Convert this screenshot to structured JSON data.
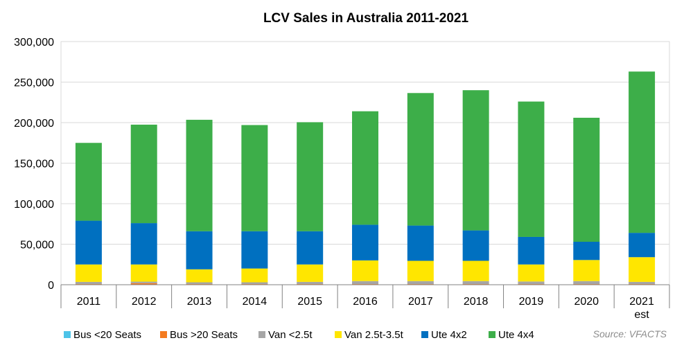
{
  "chart_data": {
    "type": "bar",
    "stacked": true,
    "title": "LCV Sales in Australia 2011-2021",
    "source": "Source: VFACTS",
    "categories": [
      [
        "2011"
      ],
      [
        "2012"
      ],
      [
        "2013"
      ],
      [
        "2014"
      ],
      [
        "2015"
      ],
      [
        "2016"
      ],
      [
        "2017"
      ],
      [
        "2018"
      ],
      [
        "2019"
      ],
      [
        "2020"
      ],
      [
        "2021",
        "est"
      ]
    ],
    "ylim": [
      0,
      300000
    ],
    "yticks": [
      {
        "value": 0,
        "label": "0"
      },
      {
        "value": 50000,
        "label": "50,000"
      },
      {
        "value": 100000,
        "label": "100,000"
      },
      {
        "value": 150000,
        "label": "150,000"
      },
      {
        "value": 200000,
        "label": "200,000"
      },
      {
        "value": 250000,
        "label": "250,000"
      },
      {
        "value": 300000,
        "label": "300,000"
      }
    ],
    "grid": true,
    "legend_position": "bottom",
    "series": [
      {
        "name": "Bus <20 Seats",
        "color": "#4dc3e8",
        "values": [
          300,
          300,
          300,
          300,
          300,
          300,
          300,
          300,
          300,
          300,
          300
        ]
      },
      {
        "name": "Bus >20 Seats",
        "color": "#f47b20",
        "values": [
          500,
          1500,
          500,
          500,
          500,
          500,
          500,
          500,
          500,
          500,
          500
        ]
      },
      {
        "name": "Van <2.5t",
        "color": "#a6a6a6",
        "values": [
          2700,
          2000,
          2200,
          2200,
          2700,
          3700,
          3700,
          3700,
          3200,
          3700,
          2700
        ]
      },
      {
        "name": "Van 2.5t-3.5t",
        "color": "#ffe600",
        "values": [
          21500,
          21200,
          16000,
          17000,
          21500,
          25500,
          25000,
          25000,
          21000,
          26000,
          30500
        ]
      },
      {
        "name": "Ute 4x2",
        "color": "#0070c0",
        "values": [
          54000,
          51000,
          47000,
          46000,
          41000,
          44000,
          43500,
          37500,
          34000,
          22500,
          30000
        ]
      },
      {
        "name": "Ute 4x4",
        "color": "#3dae49",
        "values": [
          96000,
          121500,
          137500,
          131000,
          134500,
          140000,
          163500,
          173000,
          167000,
          153000,
          199000
        ]
      }
    ]
  }
}
